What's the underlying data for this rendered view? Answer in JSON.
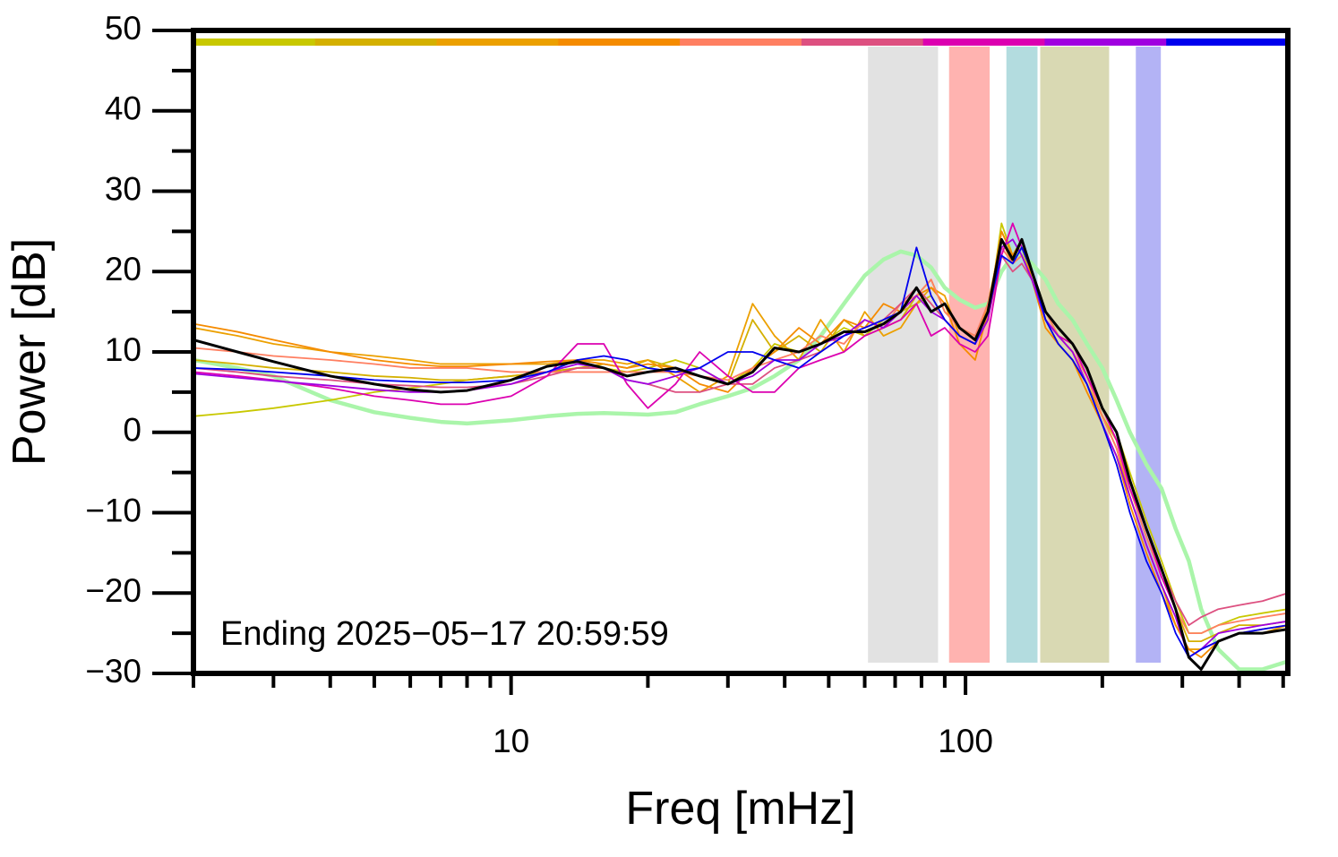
{
  "chart_data": {
    "type": "line",
    "xlabel": "Freq [mHz]",
    "ylabel": "Power [dB]",
    "annotation": "Ending 2025−05−17 20:59:59",
    "log_x": true,
    "xlim": [
      2,
      512
    ],
    "ylim": [
      -30,
      50
    ],
    "xticks": [
      10,
      100
    ],
    "xminorticks": [
      2,
      3,
      4,
      5,
      6,
      7,
      8,
      9,
      20,
      30,
      40,
      50,
      60,
      70,
      80,
      90,
      200,
      300,
      400,
      500
    ],
    "yticks": [
      {
        "value": -30,
        "label": "−30"
      },
      {
        "value": -20,
        "label": "−20"
      },
      {
        "value": -10,
        "label": "−10"
      },
      0,
      10,
      20,
      30,
      40,
      50
    ],
    "yminorticks": [
      -25,
      -15,
      -5,
      5,
      15,
      25,
      35,
      45
    ],
    "bands": [
      {
        "x": [
          61,
          87
        ],
        "color": "#e2e2e2"
      },
      {
        "x": [
          92,
          113
        ],
        "color": "#ffb3b0"
      },
      {
        "x": [
          123,
          144
        ],
        "color": "#b3dcdf"
      },
      {
        "x": [
          146,
          207
        ],
        "color": "#d9d9b3"
      },
      {
        "x": [
          237,
          269
        ],
        "color": "#b3b3f5"
      }
    ],
    "color_strip": true,
    "x": [
      2,
      2.5,
      3,
      4,
      5,
      6,
      7,
      8,
      10,
      12,
      14,
      16,
      18,
      20,
      23,
      26,
      30,
      34,
      38,
      43,
      48,
      54,
      60,
      66,
      72,
      78,
      84,
      90,
      97,
      105,
      112,
      120,
      127,
      133,
      140,
      150,
      160,
      172,
      185,
      200,
      215,
      230,
      250,
      270,
      290,
      310,
      330,
      360,
      400,
      450,
      512
    ],
    "reference": {
      "color": "#aaf5aa",
      "values": [
        9,
        8,
        7,
        4,
        2.5,
        1.8,
        1.3,
        1.1,
        1.5,
        2,
        2.3,
        2.4,
        2.3,
        2.2,
        2.5,
        3.5,
        4.5,
        5.5,
        7,
        9,
        12,
        16,
        19.5,
        21.5,
        22.5,
        22,
        20.5,
        18,
        16.5,
        15.5,
        16,
        20,
        22,
        22,
        21,
        19,
        16,
        14,
        11,
        8,
        4,
        0,
        -4,
        -7,
        -12,
        -16,
        -22,
        -27,
        -29.5,
        -29.5,
        -28.5
      ]
    },
    "series": [
      {
        "color": "#c8c800",
        "values": [
          2,
          2.5,
          3,
          4,
          5,
          5.5,
          6,
          6.5,
          7,
          7.5,
          8,
          8,
          7.5,
          8,
          9,
          8,
          6,
          8,
          11,
          10,
          11,
          13,
          12,
          14,
          15,
          16,
          17,
          14,
          12,
          11,
          14,
          26,
          22,
          23,
          19,
          15,
          12,
          11,
          8,
          3,
          0,
          -5,
          -11,
          -16,
          -21,
          -25,
          -25,
          -24,
          -23,
          -22.5,
          -22
        ]
      },
      {
        "color": "#d4b000",
        "values": [
          9,
          8.5,
          8,
          7.5,
          7,
          6.8,
          6.5,
          6.5,
          7,
          7.5,
          8,
          8.5,
          8,
          9,
          8,
          7,
          6,
          14,
          10,
          12,
          10,
          14,
          12,
          13,
          14,
          17,
          19,
          15,
          13,
          12,
          15,
          25,
          22,
          24,
          20,
          14,
          12,
          10,
          7,
          2,
          -1,
          -7,
          -13,
          -18,
          -22,
          -26,
          -26,
          -25,
          -24,
          -24,
          -23.5
        ]
      },
      {
        "color": "#eca000",
        "values": [
          13,
          12,
          11,
          10,
          9.5,
          9,
          8.5,
          8.5,
          8.5,
          8.5,
          9,
          9,
          8.5,
          9,
          7,
          5,
          7,
          16,
          12,
          9,
          14,
          10,
          15,
          12,
          13,
          16,
          18,
          17,
          12,
          11,
          16,
          24,
          21,
          22,
          19,
          14,
          11,
          9,
          6,
          2,
          -2,
          -8,
          -14,
          -19,
          -24,
          -27,
          -27,
          -26,
          -25,
          -25,
          -24
        ]
      },
      {
        "color": "#f58b00",
        "values": [
          13.5,
          12.5,
          11.5,
          10,
          9,
          8.5,
          8.2,
          8.2,
          8.5,
          8.8,
          9,
          8.5,
          8,
          8.5,
          8,
          6,
          5,
          8,
          10,
          13,
          11,
          14,
          13,
          16,
          15,
          17,
          18,
          16,
          11,
          9,
          15,
          25,
          22,
          24,
          19,
          13,
          11,
          9,
          5,
          1,
          -3,
          -9,
          -15,
          -20,
          -24,
          -27,
          -28,
          -26,
          -25,
          -24.5,
          -24
        ]
      },
      {
        "color": "#ff7f61",
        "values": [
          10.5,
          10,
          9.5,
          9,
          8.5,
          8,
          8,
          8,
          7.5,
          7.5,
          7.5,
          7.5,
          7.5,
          7.5,
          7.5,
          7,
          6.5,
          8,
          9,
          10,
          12,
          11,
          14,
          13,
          16,
          17,
          19,
          15,
          13,
          12,
          16,
          23,
          21,
          22,
          19,
          15,
          12,
          10,
          7,
          2,
          -2,
          -7,
          -13,
          -18,
          -22,
          -25,
          -25,
          -24,
          -23.5,
          -23,
          -22.5
        ]
      },
      {
        "color": "#dd5080",
        "values": [
          8,
          7.5,
          7,
          6.5,
          6,
          5.8,
          5.6,
          5.6,
          6,
          7,
          8,
          8,
          6.5,
          6,
          5,
          5,
          6,
          6,
          8,
          9,
          10,
          12,
          13,
          14,
          16,
          18,
          16,
          14,
          12,
          11,
          14,
          22,
          20,
          21,
          19,
          15,
          13,
          11,
          8,
          3,
          0,
          -6,
          -12,
          -17,
          -21,
          -24,
          -23,
          -22,
          -21.5,
          -21,
          -20
        ]
      },
      {
        "color": "#dc00b0",
        "values": [
          7.5,
          7,
          6.5,
          5.5,
          4.5,
          4,
          3.5,
          3.5,
          4.5,
          7,
          11,
          11,
          6,
          3,
          6,
          10,
          7,
          5,
          5,
          8,
          9,
          10,
          12,
          13,
          14,
          16,
          12,
          13,
          11,
          10,
          12,
          22,
          26,
          23,
          20,
          14,
          12,
          11,
          7,
          3,
          -1,
          -7,
          -12,
          -18,
          -22,
          -28,
          -27,
          -26,
          -25,
          -25,
          -24.5
        ]
      },
      {
        "color": "#a000e0",
        "values": [
          7.3,
          6.8,
          6.4,
          5.8,
          5.3,
          5,
          5,
          5.2,
          6,
          7.5,
          8.5,
          8,
          6.5,
          6,
          7,
          8,
          6,
          7,
          9,
          9,
          11,
          12,
          14,
          13,
          15,
          17,
          15,
          14,
          12,
          11,
          14,
          23,
          24,
          22,
          19,
          14,
          12,
          10,
          6,
          1,
          -3,
          -8,
          -14,
          -19,
          -23,
          -28,
          -27,
          -25,
          -24.5,
          -24,
          -23.5
        ]
      },
      {
        "color": "#0000ee",
        "values": [
          8,
          7.8,
          7.5,
          7,
          6.5,
          6.3,
          6.2,
          6.2,
          6.5,
          7.5,
          9,
          9.5,
          9,
          8,
          7.5,
          8,
          10,
          10,
          9,
          8,
          10,
          12,
          13,
          14,
          15,
          23,
          17,
          14,
          12,
          11,
          15,
          22,
          21,
          23,
          20,
          14,
          11,
          9,
          6,
          1,
          -4,
          -10,
          -16,
          -20,
          -25,
          -28,
          -27,
          -26,
          -25,
          -24.5,
          -24
        ]
      }
    ],
    "mean": {
      "color": "#000000",
      "values": [
        11.5,
        10,
        8.8,
        7,
        6,
        5.3,
        5,
        5.2,
        6.5,
        8.2,
        8.8,
        8,
        7,
        7.5,
        8,
        7,
        6,
        7.5,
        10.5,
        10,
        11,
        12.5,
        12.5,
        13.5,
        15,
        18,
        15,
        16,
        13,
        11.5,
        15,
        24,
        21.5,
        24,
        20,
        15,
        13,
        11,
        8,
        3,
        0,
        -6,
        -12,
        -17,
        -22,
        -28,
        -29.5,
        -26,
        -25,
        -25,
        -24.5
      ]
    }
  }
}
